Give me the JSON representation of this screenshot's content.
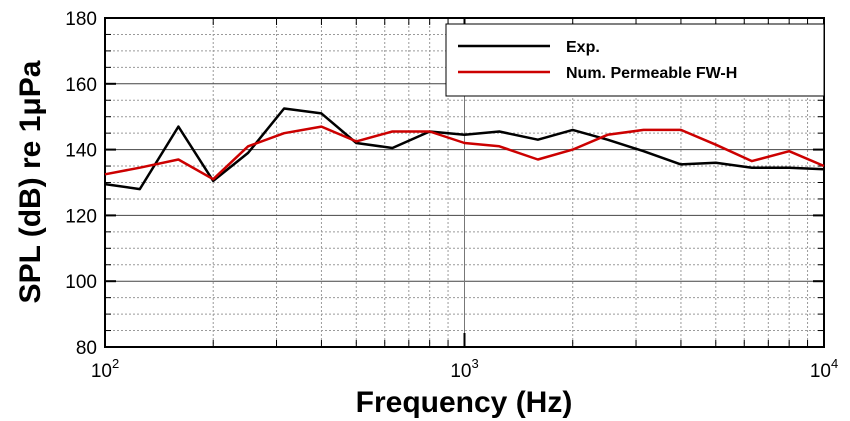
{
  "chart_data": {
    "type": "line",
    "xscale": "log",
    "xlim": [
      100,
      10000
    ],
    "ylim": [
      80,
      180
    ],
    "xlabel": "Frequency (Hz)",
    "ylabel": "SPL (dB) re 1μPa",
    "x_ticks": [
      {
        "base": "10",
        "exp": "2",
        "value": 100
      },
      {
        "base": "10",
        "exp": "3",
        "value": 1000
      },
      {
        "base": "10",
        "exp": "4",
        "value": 10000
      }
    ],
    "y_ticks": [
      "80",
      "100",
      "120",
      "140",
      "160",
      "180"
    ],
    "grid": true,
    "legend_position": "top-right",
    "series": [
      {
        "name": "Exp.",
        "color": "#000000",
        "x": [
          100,
          125,
          160,
          200,
          250,
          315,
          400,
          500,
          630,
          800,
          1000,
          1250,
          1600,
          2000,
          2500,
          3150,
          4000,
          5000,
          6300,
          8000,
          10000
        ],
        "y": [
          129.5,
          128.0,
          147.0,
          130.5,
          139.0,
          152.5,
          151.0,
          142.0,
          140.5,
          145.5,
          144.5,
          145.5,
          143.0,
          146.0,
          143.0,
          139.5,
          135.5,
          136.0,
          134.5,
          134.5,
          134.0
        ]
      },
      {
        "name": "Num. Permeable FW-H",
        "color": "#cc0000",
        "x": [
          100,
          125,
          160,
          200,
          250,
          315,
          400,
          500,
          630,
          800,
          1000,
          1250,
          1600,
          2000,
          2500,
          3150,
          4000,
          5000,
          6300,
          8000,
          10000
        ],
        "y": [
          132.5,
          134.5,
          137.0,
          131.0,
          141.0,
          145.0,
          147.0,
          142.5,
          145.5,
          145.5,
          142.0,
          141.0,
          137.0,
          140.0,
          144.5,
          146.0,
          146.0,
          141.5,
          136.5,
          139.5,
          135.0
        ]
      }
    ]
  }
}
